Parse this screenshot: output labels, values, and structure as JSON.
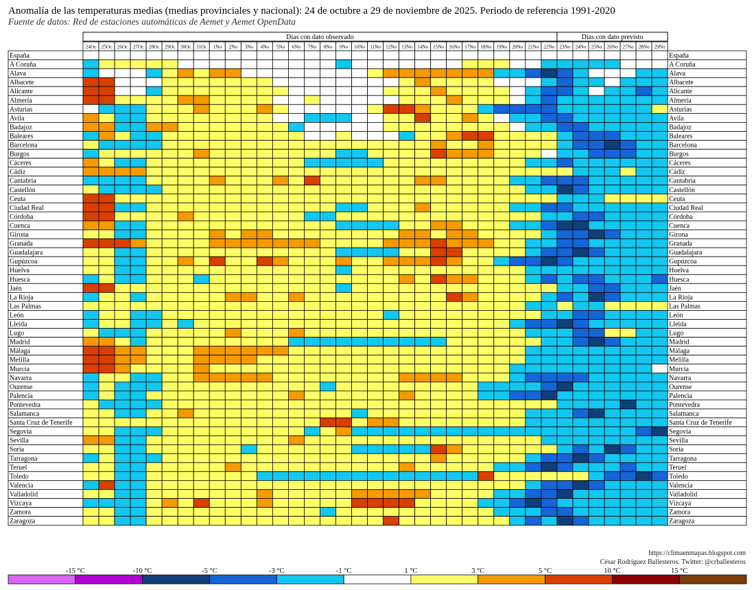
{
  "title": "Anomalía de las temperaturas medias (medias provinciales y nacional): 24 de octubre a 29 de noviembre de 2025. Periodo de referencia 1991-2020",
  "subtitle": "Fuente de datos: Red de estaciones automáticas de Aemet y Aemet OpenData",
  "credits": {
    "url": "https://climaenmapas.blogspot.com",
    "author": "César Rodríguez Ballesteros. Twitter: @crballesteros"
  },
  "colors": {
    "c-15": "#d966f2",
    "c-10": "#b000d0",
    "c-5": "#0f3f78",
    "c-3": "#1565d8",
    "c-1": "#12c8f0",
    "c0": "#ffffff",
    "c1": "#ffff66",
    "c3": "#f59a00",
    "c5": "#d94000",
    "c10": "#8b0000",
    "c15": "#7a3c0a"
  },
  "chart_data": {
    "type": "heatmap",
    "title": "Anomalía de las temperaturas medias (medias provinciales y nacional): 24 de octubre a 29 de noviembre de 2025. Periodo de referencia 1991-2020",
    "group_labels": {
      "observed": "Días con dato observado",
      "forecast": "Días con dato previsto"
    },
    "observed_day_count": 30,
    "columns": [
      "24Oc",
      "25Oc",
      "26Oc",
      "27Oc",
      "28Oc",
      "29Oc",
      "30Oc",
      "31Oc",
      "1No",
      "2No",
      "3No",
      "4No",
      "5No",
      "6No",
      "7No",
      "8No",
      "9No",
      "10No",
      "11No",
      "12No",
      "13No",
      "14No",
      "15No",
      "16No",
      "17No",
      "18No",
      "19No",
      "20No",
      "21No",
      "22No",
      "23No",
      "24No",
      "25No",
      "26No",
      "27No",
      "28No",
      "29No"
    ],
    "rows": [
      "España",
      "A Coruña",
      "Alava",
      "Albacete",
      "Alicante",
      "Almería",
      "Asturias",
      "Avila",
      "Badajoz",
      "Baleares",
      "Barcelona",
      "Burgos",
      "Cáceres",
      "Cádiz",
      "Cantabria",
      "Castellón",
      "Ceuta",
      "Ciudad Real",
      "Córdoba",
      "Cuenca",
      "Girona",
      "Granada",
      "Guadalajara",
      "Gupúzcoa",
      "Huelva",
      "Huesca",
      "Jaén",
      "La Rioja",
      "Las Palmas",
      "León",
      "Lleida",
      "Lugo",
      "Madrid",
      "Málaga",
      "Melilla",
      "Murcia",
      "Navarra",
      "Ourense",
      "Palencia",
      "Pontevedra",
      "Salamanca",
      "Santa Cruz de Tenerife",
      "Segovia",
      "Sevilla",
      "Soria",
      "Tarragona",
      "Teruel",
      "Toledo",
      "Valencia",
      "Valladolid",
      "Vizcaya",
      "Zamora",
      "Zaragoza"
    ],
    "value_code": {
      "-3": "-5 a -3 °C",
      "-2": "-3 a -1 °C",
      "-1": "-1 a 1 °C",
      "0": "-1 a 1 °C",
      "1": "1 a 3 °C",
      "2": "3 a 5 °C",
      "3": "5 a 10 °C"
    },
    "values": [
      "0000000000000000000000000000000000000",
      "-1111110000000000-1000000011100-1-1-1-1-1000",
      "-1000-1121220000000012222222-1-1-2-3-2-1000-1-1-10",
      "33000111111100000000121111000-1-2-1-10-1-1-1-2-10",
      "3300-111111111000000111211110-1-2-2-10-1-1-2-10",
      "3311112211110010000011121110-1-2-1-1-1-1-1-1-10",
      "0-1-1-1111211121000001332111-1-2-2-2-2-1-1-1-1-1-11",
      "21-1-11111111100-1-1-10011311210-1-1-2-2-1-1-1-1-1-1-1",
      "22-1-1221111111-100000111111110-1-1-2-2-1-1-1-1-1-11",
      "-121-1-1111111111001000-1112331111-1-2-2-2-1-1-1-2-2-1-1",
      "1-1-1-1-11111111111111111121121111-1-2-2-3-2-1-1-1-2-2-1-1",
      "-1111111211111111-1-1111132221110-1-1-2-2-2-1-1-1-1-100",
      "21-1-11111111111-1-1-1-1-1111111111-1-1-2-1-1-1-1-1-100",
      "2222111111111111111111111111111-1-1-11-1-1-1-100",
      "-1-1-1-111112111213111111221111-1-1-2-2-2-1-1-1-1-1-10",
      "1-1-1-1-111111111111111111111111-1-1-3-2-1-1-1-1-1-10",
      "331111111111111111111111111111-1-1-11111110",
      "33-1-1111111111111-1-1111211111-1-1-2-2-1-1-1-1-1-1-1",
      "33111121111111-1-11111111111111-1-1-2-2-1-1-1-1-1-1-1",
      "22-1-1111111111111-1-1-1-11122111-1-1-2-3-3-1-1-1-1-1-1-1",
      "11-1-11111212211111111221221111-1-2-2-3-2-1-1-1-2-1-11",
      "3332111122222221111222322211-1-1-2-2-1-1-1-1-11",
      "11-1-1111111111111-1-1-1-111331111-1-2-2-3-2-1-1-1-1-1-1-1",
      "11-1-11121311321112112223211-1-2-2-3-2-1-1-1-1-1-11",
      "11-1-1111111111111-111111111111-1-1-1-1-1-1-1-1-1-1-1",
      "-11-1-1111-111111111111121322111-1-2-1-2-2-1-1-1-2-2-1-1",
      "3311111111111111-11111111111111-1-1-2-2-1-1-1-1-1-1-1",
      "-111-11111122112111111111321111-1-2-1-3-2-1-1-1-1-1-1-1",
      "1111111111111111111111111111-1-11-1-1111111",
      "-111-1-111111111111111-1111111111-1-1-2-2-1-1-1-1-1-1-1",
      "-111-1-11-111111111111111111111-1-2-2-3-2-1-1-1-1-11",
      "1-1-1-1111112111211111111111111-1-1-1-2-211-1-1-11",
      "221-1111111111-1-1-1-1-1-1-1-1-1-1111111-1-1-2-3-2-1-1-1-1-1-1-1",
      "3322111222222111111111111111-1-1-1-1-1-1-1-1-1-1",
      "3322111222211111111111111111-1-1-1-1-1-1-1-1-1-1",
      "332111121111111111111111111-1-1-1-1-1-1-1-1-1",
      "-111-1-11122222111111112222111-1-2-2-2-2-1-1-1-1-1-11",
      "-11-1-1-11111111111-1111111111-1-1-1-1-2-3-1-1-1-1-1-1-1",
      "-11-1-1111111111211111121111-1-1-2-2-3-1-1-1-1-1-1-1",
      "1-1-1-1-11111111111111111111111111-1-1-1-1-3-1-1-1-1-1-1-1",
      "11-1-11121111111111-11111111111-1-1-1-2-3-1-1-1-1-1-1-1",
      "1111111111111113312211111111-1-1-1-1-1-1-1-1-11",
      "11-1-1-1111111111-112-1-1-1-1-1-1-1-1-1-1-1-1-1-1-1-1-1-1-2-3-3-1-1-1-2-1-1-1",
      "22-1-11111111112111111111111111-1-1-1-1-1-1-1-1-1-1",
      "11-1-1111111-1111111-1-1-1-1-132111111-1-2-1-3-2-1-1-1-1-1-1-1",
      "-11-1-1-111111111111111111211111-1-2-2-3-2-1-1-1-1-1-1-1",
      "11-1-11111121111111111211111-1-1-2-3-2-1-1-1-2-1-1-1",
      "11-1-11111111-1-1-1-1-1-1-1-1-1-1-1-1-1-13111111-1-2-2-3-2-1-1-1-1-1-1-1",
      "-13-1-1111111111111111111111111-1-2-2-3-2-1-1-1-1-1-1-1",
      "11-1-11111111211111222221111-1-1-2-2-3-1-1-1-1-1-1-1",
      "-1-1-1-1121311121111133331111-1-1-2-3-2-1-1-1-1-1-1-1",
      "11-1-111111111111-11111111111-1-1-1-2-2-1-1-1-1-1-1-1",
      "11-1-111111111111111131111111-1-2-1-3-2-1-1-1-1-1-1-1"
    ],
    "legend": {
      "labels": [
        "-15 °C",
        "-10 °C",
        "-5 °C",
        "-3 °C",
        "-1 °C",
        "1 °C",
        "3 °C",
        "5 °C",
        "10 °C",
        "15 °C"
      ],
      "colors": [
        "#d966f2",
        "#b000d0",
        "#0f3f78",
        "#1565d8",
        "#12c8f0",
        "#ffffff",
        "#ffff66",
        "#f59a00",
        "#d94000",
        "#8b0000",
        "#7a3c0a"
      ]
    }
  }
}
